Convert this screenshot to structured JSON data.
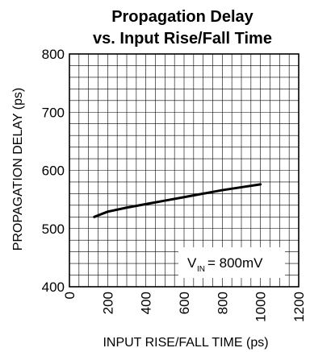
{
  "chart_data": {
    "type": "line",
    "title_line1": "Propagation Delay",
    "title_line2": "vs. Input Rise/Fall Time",
    "xlabel": "INPUT RISE/FALL TIME (ps)",
    "ylabel": "PROPAGATION DELAY (ps)",
    "xlim": [
      0,
      1200
    ],
    "ylim": [
      400,
      800
    ],
    "xticks": [
      "0",
      "200",
      "400",
      "600",
      "800",
      "1000",
      "1200"
    ],
    "yticks": [
      "400",
      "500",
      "600",
      "700",
      "800"
    ],
    "grid": true,
    "series": [
      {
        "x": [
          130,
          200,
          300,
          400,
          500,
          600,
          700,
          800,
          900,
          1000
        ],
        "y": [
          520,
          529,
          536,
          542,
          548,
          554,
          560,
          566,
          571,
          576
        ]
      }
    ],
    "annotation": {
      "prefix": "V",
      "subscript": "IN",
      "suffix": " = 800mV"
    },
    "line_color": "#000000",
    "grid_color": "#000000"
  }
}
